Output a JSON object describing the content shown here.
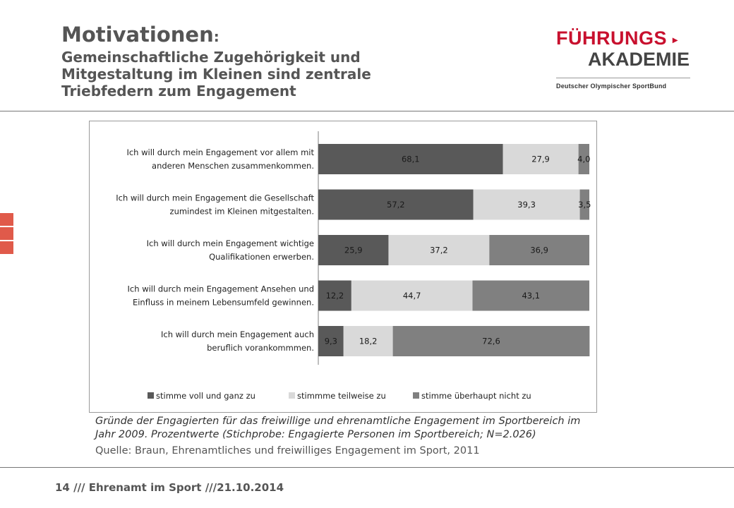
{
  "title": {
    "main": "Motivationen",
    "colon": ":",
    "sub_lines": [
      "Gemeinschaftliche Zugehörigkeit und",
      "Mitgestaltung im Kleinen sind zentrale",
      "Triebfedern zum Engagement"
    ]
  },
  "logo": {
    "line1": "FÜHRUNGS",
    "arrow": "▸",
    "line2": "AKADEMIE",
    "line3": "Deutscher Olympischer SportBund"
  },
  "colors": {
    "voll": "#595959",
    "teilweise": "#d9d9d9",
    "nicht": "#808080",
    "accent": "#c8102e"
  },
  "chart_data": {
    "type": "bar",
    "orientation": "horizontal",
    "stacked": true,
    "categories": [
      [
        "Ich will durch mein Engagement vor allem mit",
        "anderen Menschen zusammenkommen."
      ],
      [
        "Ich will durch mein Engagement die Gesellschaft",
        "zumindest im Kleinen mitgestalten."
      ],
      [
        "Ich will durch mein Engagement wichtige",
        "Qualifikationen erwerben."
      ],
      [
        "Ich will durch mein Engagement Ansehen und",
        "Einfluss in meinem Lebensumfeld gewinnen."
      ],
      [
        "Ich will durch mein Engagement auch",
        "beruflich voranko­mmmen."
      ]
    ],
    "series": [
      {
        "name": "stimme voll und ganz zu",
        "values": [
          68.1,
          57.2,
          25.9,
          12.2,
          9.3
        ],
        "labels": [
          "68,1",
          "57,2",
          "25,9",
          "12,2",
          "9,3"
        ]
      },
      {
        "name": "stimmme teilweise zu",
        "values": [
          27.9,
          39.3,
          37.2,
          44.7,
          18.2
        ],
        "labels": [
          "27,9",
          "39,3",
          "37,2",
          "44,7",
          "18,2"
        ]
      },
      {
        "name": "stimme überhaupt nicht zu",
        "values": [
          4.0,
          3.5,
          36.9,
          43.1,
          72.6
        ],
        "labels": [
          "4,0",
          "3,5",
          "36,9",
          "43,1",
          "72,6"
        ]
      }
    ],
    "xlim": [
      0,
      100
    ],
    "legend_position": "bottom"
  },
  "caption": {
    "line1": "Gründe der Engagierten für das freiwillige und ehrenamtliche Engagement im Sportbereich im",
    "line2": "Jahr 2009. Prozentwerte (Stichprobe: Engagierte Personen im Sportbereich; N=2.026)",
    "source": "Quelle: Braun, Ehrenamtliches und freiwilliges Engagement im Sport, 2011"
  },
  "footer": {
    "text": "14 /// Ehrenamt im  Sport  ///21.10.2014"
  }
}
